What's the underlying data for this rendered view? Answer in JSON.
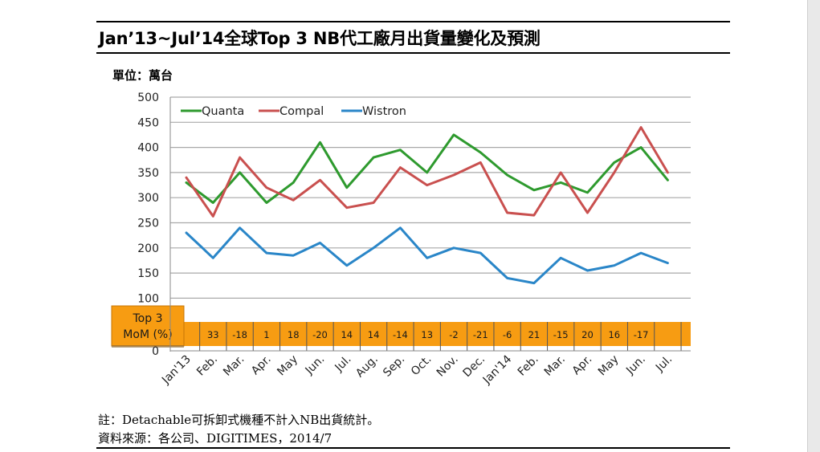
{
  "title": "Jan’13~Jul’14全球Top 3 NB代工廠月出貨量變化及預測",
  "unit_label": "單位：萬台",
  "notes": {
    "note": "註：Detachable可拆卸式機種不計入NB出貨統計。",
    "source": "資料來源：各公司、DIGITIMES，2014/7"
  },
  "chart_data": {
    "type": "line",
    "title": "Jan’13~Jul’14全球Top 3 NB代工廠月出貨量變化及預測",
    "ylabel": "單位：萬台",
    "xlabel": "",
    "ylim": [
      0,
      500
    ],
    "yticks": [
      "0",
      "100",
      "150",
      "200",
      "250",
      "300",
      "350",
      "400",
      "450",
      "500"
    ],
    "grid": true,
    "legend_position": "top-left",
    "categories": [
      "Jan'13",
      "Feb.",
      "Mar.",
      "Apr.",
      "May",
      "Jun.",
      "Jul.",
      "Aug.",
      "Sep.",
      "Oct.",
      "Nov.",
      "Dec.",
      "Jan'14",
      "Feb.",
      "Mar.",
      "Apr.",
      "May",
      "Jun.",
      "Jul."
    ],
    "series": [
      {
        "name": "Quanta",
        "color": "#2e9a2e",
        "values": [
          330,
          290,
          350,
          290,
          330,
          410,
          320,
          380,
          395,
          350,
          425,
          390,
          345,
          315,
          330,
          310,
          370,
          400,
          335
        ]
      },
      {
        "name": "Compal",
        "color": "#c9504f",
        "values": [
          340,
          263,
          380,
          320,
          295,
          335,
          280,
          290,
          360,
          325,
          345,
          370,
          270,
          265,
          350,
          270,
          350,
          440,
          350
        ]
      },
      {
        "name": "Wistron",
        "color": "#2a86c8",
        "values": [
          230,
          180,
          240,
          190,
          185,
          210,
          165,
          200,
          240,
          180,
          200,
          190,
          140,
          130,
          180,
          155,
          165,
          190,
          170
        ]
      }
    ],
    "table": {
      "label_line1": "Top 3",
      "label_line2": "MoM (%)",
      "values": [
        "33",
        "-18",
        "1",
        "18",
        "-20",
        "14",
        "14",
        "-14",
        "13",
        "-2",
        "-21",
        "-6",
        "21",
        "-15",
        "20",
        "16",
        "-17"
      ]
    }
  }
}
